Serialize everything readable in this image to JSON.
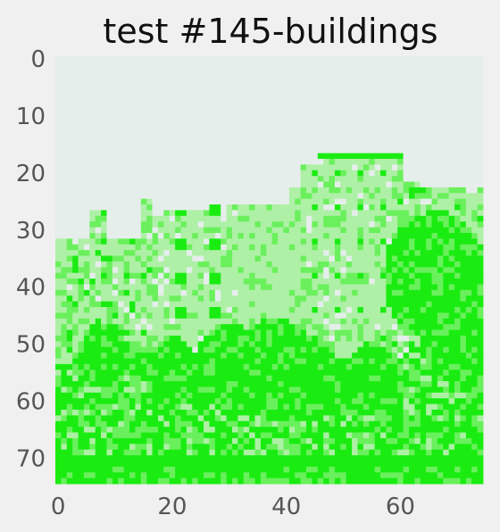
{
  "chart_data": {
    "type": "heatmap",
    "title": "test #145-buildings",
    "xlabel": "",
    "ylabel": "",
    "x_ticks": [
      "0",
      "20",
      "40",
      "60"
    ],
    "y_ticks": [
      "0",
      "10",
      "20",
      "30",
      "40",
      "50",
      "60",
      "70"
    ],
    "x_tick_values": [
      0,
      20,
      40,
      60
    ],
    "y_tick_values": [
      0,
      10,
      20,
      30,
      40,
      50,
      60,
      70
    ],
    "xlim": [
      -0.5,
      74.5
    ],
    "ylim": [
      74.5,
      -0.5
    ],
    "grid": false,
    "colormap": [
      "#e6eeec",
      "#aef0a6",
      "#6af05c",
      "#1aec12"
    ],
    "image_size": [
      75,
      75
    ],
    "description_levels": "pixel intensity 0 (sky, pale) to 1 (dense green)"
  }
}
